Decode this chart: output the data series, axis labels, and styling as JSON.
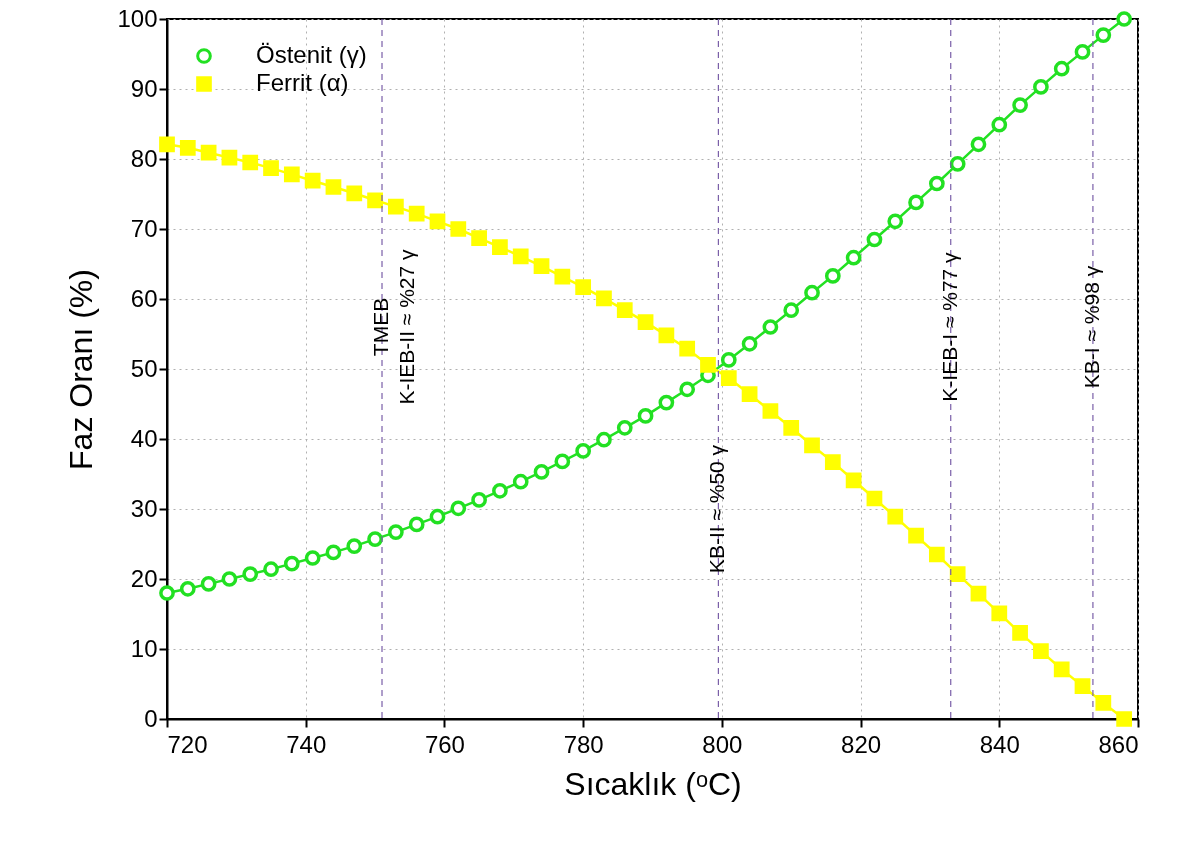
{
  "chart_data": {
    "type": "line",
    "xlabel": "Sıcaklık (ᵒC)",
    "ylabel": "Faz Oranı (%)",
    "x": [
      720,
      723,
      726,
      729,
      732,
      735,
      738,
      741,
      744,
      747,
      750,
      753,
      756,
      759,
      762,
      765,
      768,
      771,
      774,
      777,
      780,
      783,
      786,
      789,
      792,
      795,
      798,
      801,
      804,
      807,
      810,
      813,
      816,
      819,
      822,
      825,
      828,
      831,
      834,
      837,
      840,
      843,
      846,
      849,
      852,
      855,
      858
    ],
    "series": [
      {
        "name": "Östenit  (γ)",
        "color": "#22e022",
        "marker": "circle",
        "values": [
          18,
          18.6,
          19.3,
          20,
          20.7,
          21.4,
          22.2,
          23,
          23.8,
          24.7,
          25.7,
          26.7,
          27.8,
          28.9,
          30.1,
          31.3,
          32.6,
          33.9,
          35.3,
          36.8,
          38.3,
          39.9,
          41.6,
          43.3,
          45.2,
          47.1,
          49.1,
          51.3,
          53.6,
          56,
          58.4,
          60.9,
          63.3,
          65.9,
          68.5,
          71.1,
          73.8,
          76.5,
          79.3,
          82.1,
          84.9,
          87.7,
          90.3,
          92.9,
          95.3,
          97.7,
          100
        ]
      },
      {
        "name": "Ferrit    (α)",
        "color": "#ffff00",
        "marker": "square",
        "values": [
          82.1,
          81.6,
          80.9,
          80.2,
          79.5,
          78.7,
          77.8,
          76.9,
          76,
          75.1,
          74.1,
          73.2,
          72.2,
          71.1,
          70,
          68.7,
          67.4,
          66.1,
          64.7,
          63.2,
          61.7,
          60.1,
          58.4,
          56.7,
          54.8,
          52.9,
          50.6,
          48.7,
          46.4,
          44,
          41.6,
          39.1,
          36.7,
          34.1,
          31.5,
          28.9,
          26.2,
          23.5,
          20.7,
          17.9,
          15.1,
          12.3,
          9.7,
          7.1,
          4.7,
          2.3,
          0
        ]
      }
    ],
    "xlim": [
      720,
      860
    ],
    "xticks": [
      720,
      740,
      760,
      780,
      800,
      820,
      840,
      860
    ],
    "ylim": [
      0,
      100
    ],
    "yticks": [
      0,
      10,
      20,
      30,
      40,
      50,
      60,
      70,
      80,
      90,
      100
    ],
    "grid": true,
    "legend": "top left",
    "line_style": "solid",
    "ref_lines": [
      {
        "axis": "x",
        "value": 751,
        "label": "TMEB\nK-IEB-II  ≈ %27 γ",
        "color": "#7a5fa8",
        "line_style": "dashed"
      },
      {
        "axis": "x",
        "value": 799.5,
        "label": "KB-II ≈ %50 γ",
        "color": "#7a5fa8",
        "line_style": "dashed"
      },
      {
        "axis": "x",
        "value": 833,
        "label": "K-IEB-I ≈ %77 γ",
        "color": "#7a5fa8",
        "line_style": "dashed"
      },
      {
        "axis": "x",
        "value": 853.5,
        "label": "KB-I ≈ %98 γ",
        "color": "#7a5fa8",
        "line_style": "dashed"
      }
    ]
  }
}
